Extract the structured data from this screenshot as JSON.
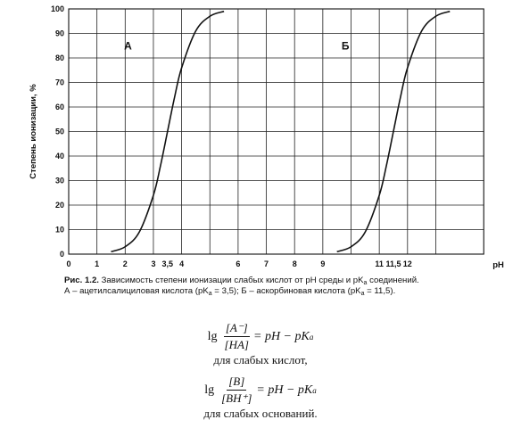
{
  "chart_data": {
    "type": "line",
    "ylabel": "Степень ионизации, %",
    "xlabel": "pH",
    "xlim": [
      0,
      14.7
    ],
    "ylim": [
      0,
      100
    ],
    "x_ticks": [
      0,
      1,
      2,
      3,
      4,
      5,
      6,
      7,
      8,
      9,
      10,
      11,
      12,
      13
    ],
    "x_tick_labels": [
      {
        "x": 0,
        "label": "0"
      },
      {
        "x": 1,
        "label": "1"
      },
      {
        "x": 2,
        "label": "2"
      },
      {
        "x": 3,
        "label": "3"
      },
      {
        "x": 3.5,
        "label": "3,5"
      },
      {
        "x": 4,
        "label": "4"
      },
      {
        "x": 6,
        "label": "6"
      },
      {
        "x": 7,
        "label": "7"
      },
      {
        "x": 8,
        "label": "8"
      },
      {
        "x": 9,
        "label": "9"
      },
      {
        "x": 11,
        "label": "11"
      },
      {
        "x": 11.5,
        "label": "11,5"
      },
      {
        "x": 12,
        "label": "12"
      }
    ],
    "y_ticks": [
      0,
      10,
      20,
      30,
      40,
      50,
      60,
      70,
      80,
      90,
      100
    ],
    "grid_x": [
      1,
      2,
      3,
      4,
      5,
      6,
      7,
      8,
      9,
      10,
      11,
      12,
      13
    ],
    "series": [
      {
        "name": "А",
        "label_position": [
          2.1,
          85
        ],
        "x": [
          1.5,
          2.0,
          2.5,
          3.0,
          3.25,
          3.5,
          3.75,
          4.0,
          4.5,
          5.0,
          5.5
        ],
        "y": [
          1,
          3,
          9,
          24,
          36,
          50,
          64,
          76,
          91,
          97,
          99
        ]
      },
      {
        "name": "Б",
        "label_position": [
          9.8,
          85
        ],
        "x": [
          9.5,
          10.0,
          10.5,
          11.0,
          11.25,
          11.5,
          11.75,
          12.0,
          12.5,
          13.0,
          13.5
        ],
        "y": [
          1,
          3,
          9,
          24,
          36,
          50,
          64,
          76,
          91,
          97,
          99
        ]
      }
    ]
  },
  "caption": {
    "lead": "Рис. 1.2.",
    "line1": " Зависимость степени ионизации слабых кислот от pH среды и pK",
    "line1_sub": "a",
    "line1_end": " соединений.",
    "line2a": "А – ацетилсалициловая кислота (pK",
    "line2a_sub": "a",
    "line2b": " = 3,5); Б – аскорбиновая кислота (pK",
    "line2b_sub": "a",
    "line2c": " = 11,5)."
  },
  "formulas": {
    "f1": {
      "lg": "lg",
      "num": "[A⁻]",
      "den": "[HA]",
      "rhs": "= pH − pK",
      "rhs_sub": "a",
      "note": "для слабых кислот,"
    },
    "f2": {
      "lg": "lg",
      "num": "[B]",
      "den": "[BH⁺]",
      "rhs": "= pH − pK",
      "rhs_sub": "a",
      "note": "для слабых оснований."
    }
  }
}
